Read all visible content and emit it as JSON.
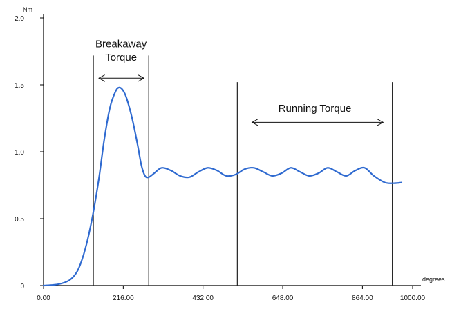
{
  "chart_data": {
    "type": "line",
    "title": "",
    "xlabel": "degrees",
    "ylabel": "Nm",
    "xlim": [
      0,
      1000
    ],
    "ylim": [
      0,
      2
    ],
    "x_ticks": [
      0,
      216,
      432,
      648,
      864,
      1000
    ],
    "x_tick_labels": [
      "0.00",
      "216.00",
      "432.00",
      "648.00",
      "864.00",
      "1000.00"
    ],
    "y_ticks": [
      0,
      0.5,
      1.0,
      1.5,
      2.0
    ],
    "y_tick_labels": [
      "0",
      "0.5",
      "1.0",
      "1.5",
      "2.0"
    ],
    "grid": false,
    "series": [
      {
        "x": [
          0,
          40,
          70,
          90,
          105,
          120,
          135,
          150,
          165,
          180,
          195,
          205,
          215,
          225,
          240,
          255,
          265,
          275,
          285,
          300,
          320,
          345,
          370,
          395,
          420,
          445,
          470,
          495,
          520,
          545,
          570,
          595,
          620,
          645,
          670,
          695,
          720,
          745,
          770,
          795,
          820,
          845,
          870,
          895,
          925,
          950,
          970
        ],
        "y": [
          0,
          0.01,
          0.04,
          0.1,
          0.2,
          0.35,
          0.55,
          0.8,
          1.1,
          1.33,
          1.45,
          1.48,
          1.46,
          1.4,
          1.25,
          1.05,
          0.9,
          0.82,
          0.81,
          0.84,
          0.88,
          0.86,
          0.82,
          0.81,
          0.85,
          0.88,
          0.86,
          0.82,
          0.83,
          0.87,
          0.88,
          0.85,
          0.82,
          0.84,
          0.88,
          0.85,
          0.82,
          0.84,
          0.88,
          0.85,
          0.82,
          0.86,
          0.88,
          0.82,
          0.77,
          0.765,
          0.77
        ],
        "color": "#2f6ad0"
      }
    ],
    "vlines": [
      {
        "x": 135,
        "ytop": 1.72
      },
      {
        "x": 285,
        "ytop": 1.72
      },
      {
        "x": 525,
        "ytop": 1.52
      },
      {
        "x": 945,
        "ytop": 1.52
      }
    ],
    "annotations": [
      {
        "text": "Breakaway",
        "x": 210,
        "y": 1.78
      },
      {
        "text": "Torque",
        "x": 210,
        "y": 1.68
      },
      {
        "text": "Running Torque",
        "x": 735,
        "y": 1.3
      }
    ],
    "arrows": [
      {
        "from": 150,
        "to": 272,
        "y": 1.55
      },
      {
        "from": 565,
        "to": 920,
        "y": 1.22
      }
    ],
    "axis_color": "#000000"
  }
}
